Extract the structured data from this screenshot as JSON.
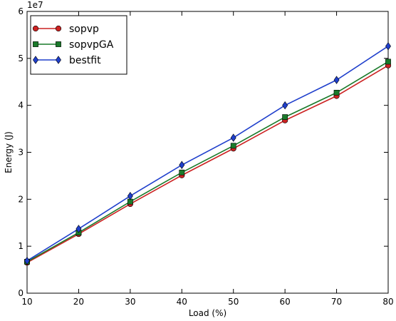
{
  "chart_data": {
    "type": "line",
    "title": "",
    "xlabel": "Load (%)",
    "ylabel": "Energy (J)",
    "y_offset_label": "1e7",
    "x": [
      10,
      20,
      30,
      40,
      50,
      60,
      70,
      80
    ],
    "xlim": [
      10,
      80
    ],
    "ylim": [
      0,
      60000000
    ],
    "y_scale_factor": 10000000,
    "x_ticks": [
      10,
      20,
      30,
      40,
      50,
      60,
      70,
      80
    ],
    "y_ticks": [
      0,
      1,
      2,
      3,
      4,
      5,
      6
    ],
    "grid": false,
    "legend_position": "top-left",
    "series": [
      {
        "name": "sopvp",
        "color": "#cc2222",
        "marker": "circle",
        "values": [
          6500000,
          12600000,
          19000000,
          25100000,
          30800000,
          36800000,
          42000000,
          48500000
        ]
      },
      {
        "name": "sopvpGA",
        "color": "#1a7a2a",
        "marker": "square",
        "values": [
          6700000,
          12900000,
          19500000,
          25700000,
          31400000,
          37500000,
          42700000,
          49300000
        ]
      },
      {
        "name": "bestfit",
        "color": "#1f3fcc",
        "marker": "diamond",
        "values": [
          6900000,
          13700000,
          20700000,
          27300000,
          33100000,
          40000000,
          45400000,
          52600000
        ]
      }
    ]
  }
}
